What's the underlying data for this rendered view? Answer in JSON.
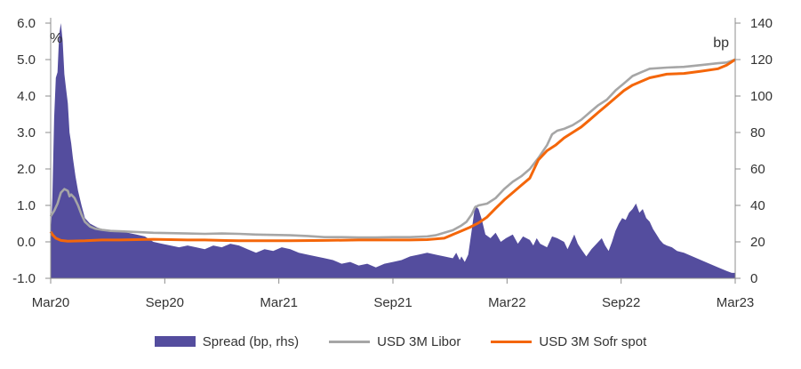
{
  "chart_data": {
    "type": "area+line",
    "title": "",
    "units": {
      "left": "%",
      "right": "bp"
    },
    "x_ticks": [
      "Mar20",
      "Sep20",
      "Mar21",
      "Sep21",
      "Mar22",
      "Sep22",
      "Mar23"
    ],
    "left_axis": {
      "ticks": [
        "6.0",
        "5.0",
        "4.0",
        "3.0",
        "2.0",
        "1.0",
        "0.0",
        "-1.0"
      ],
      "ylim": [
        -1.0,
        6.0
      ]
    },
    "right_axis": {
      "ticks": [
        "140",
        "120",
        "100",
        "80",
        "60",
        "40",
        "20",
        "0"
      ],
      "ylim": [
        0,
        140
      ]
    },
    "grid": false,
    "legend_placement": "bottom",
    "x_unit": "months since Mar20",
    "series": [
      {
        "name": "Spread (bp, rhs)",
        "kind": "area",
        "axis": "right",
        "color": "#544d9e",
        "points": [
          [
            0,
            24
          ],
          [
            0.1,
            44
          ],
          [
            0.2,
            88
          ],
          [
            0.3,
            110
          ],
          [
            0.4,
            113
          ],
          [
            0.5,
            134
          ],
          [
            0.6,
            140
          ],
          [
            0.7,
            130
          ],
          [
            0.8,
            112
          ],
          [
            0.9,
            104
          ],
          [
            1.0,
            96
          ],
          [
            1.1,
            80
          ],
          [
            1.2,
            74
          ],
          [
            1.3,
            66
          ],
          [
            1.45,
            56
          ],
          [
            1.6,
            48
          ],
          [
            1.8,
            40
          ],
          [
            2.0,
            33
          ],
          [
            2.3,
            30
          ],
          [
            2.7,
            28
          ],
          [
            3,
            27
          ],
          [
            3.5,
            26
          ],
          [
            4,
            26
          ],
          [
            4.5,
            25
          ],
          [
            5,
            24
          ],
          [
            5.5,
            23
          ],
          [
            6,
            20
          ],
          [
            6.5,
            19
          ],
          [
            7,
            18
          ],
          [
            7.5,
            17
          ],
          [
            8,
            18
          ],
          [
            8.5,
            17
          ],
          [
            9,
            16
          ],
          [
            9.5,
            18
          ],
          [
            10,
            17
          ],
          [
            10.5,
            19
          ],
          [
            11,
            18
          ],
          [
            11.5,
            16
          ],
          [
            12,
            14
          ],
          [
            12.5,
            16
          ],
          [
            13,
            15
          ],
          [
            13.5,
            17
          ],
          [
            14,
            16
          ],
          [
            14.5,
            14
          ],
          [
            15,
            13
          ],
          [
            15.5,
            12
          ],
          [
            16,
            11
          ],
          [
            16.5,
            10
          ],
          [
            17,
            8
          ],
          [
            17.5,
            9
          ],
          [
            18,
            7
          ],
          [
            18.5,
            8
          ],
          [
            19,
            6
          ],
          [
            19.5,
            8
          ],
          [
            20,
            9
          ],
          [
            20.5,
            10
          ],
          [
            21,
            12
          ],
          [
            21.5,
            13
          ],
          [
            22,
            14
          ],
          [
            22.5,
            13
          ],
          [
            23,
            12
          ],
          [
            23.5,
            11
          ],
          [
            23.7,
            14
          ],
          [
            23.9,
            10
          ],
          [
            24,
            12
          ],
          [
            24.2,
            9
          ],
          [
            24.4,
            13
          ],
          [
            24.6,
            26
          ],
          [
            24.8,
            40
          ],
          [
            25,
            38
          ],
          [
            25.2,
            32
          ],
          [
            25.4,
            24
          ],
          [
            25.7,
            22
          ],
          [
            26,
            25
          ],
          [
            26.3,
            20
          ],
          [
            26.6,
            22
          ],
          [
            27,
            24
          ],
          [
            27.3,
            19
          ],
          [
            27.6,
            23
          ],
          [
            28,
            21
          ],
          [
            28.2,
            18
          ],
          [
            28.4,
            22
          ],
          [
            28.6,
            19
          ],
          [
            29,
            17
          ],
          [
            29.3,
            23
          ],
          [
            29.6,
            22
          ],
          [
            30,
            20
          ],
          [
            30.2,
            16
          ],
          [
            30.4,
            20
          ],
          [
            30.6,
            24
          ],
          [
            30.8,
            19
          ],
          [
            31,
            16
          ],
          [
            31.3,
            12
          ],
          [
            31.6,
            16
          ],
          [
            32,
            20
          ],
          [
            32.2,
            22
          ],
          [
            32.4,
            18
          ],
          [
            32.6,
            15
          ],
          [
            32.8,
            20
          ],
          [
            33,
            26
          ],
          [
            33.2,
            30
          ],
          [
            33.4,
            33
          ],
          [
            33.6,
            32
          ],
          [
            33.8,
            36
          ],
          [
            34,
            38
          ],
          [
            34.2,
            41
          ],
          [
            34.4,
            36
          ],
          [
            34.6,
            38
          ],
          [
            34.8,
            33
          ],
          [
            35,
            31
          ],
          [
            35.2,
            27
          ],
          [
            35.4,
            24
          ],
          [
            35.6,
            21
          ],
          [
            35.8,
            19
          ],
          [
            36,
            18
          ],
          [
            36.3,
            17
          ],
          [
            36.6,
            15
          ],
          [
            37,
            14
          ],
          [
            37.5,
            12
          ],
          [
            38,
            10
          ],
          [
            38.5,
            8
          ],
          [
            39,
            6
          ],
          [
            39.5,
            4
          ],
          [
            39.8,
            3
          ],
          [
            40,
            3
          ]
        ]
      },
      {
        "name": "USD 3M Libor",
        "kind": "line",
        "axis": "left",
        "color": "#a6a6a6",
        "points": [
          [
            0,
            0.7
          ],
          [
            0.2,
            0.85
          ],
          [
            0.4,
            1.05
          ],
          [
            0.6,
            1.35
          ],
          [
            0.8,
            1.45
          ],
          [
            1.0,
            1.4
          ],
          [
            1.1,
            1.25
          ],
          [
            1.2,
            1.3
          ],
          [
            1.4,
            1.2
          ],
          [
            1.6,
            1.0
          ],
          [
            1.8,
            0.75
          ],
          [
            2.0,
            0.55
          ],
          [
            2.3,
            0.42
          ],
          [
            2.6,
            0.36
          ],
          [
            3,
            0.33
          ],
          [
            3.5,
            0.3
          ],
          [
            4,
            0.29
          ],
          [
            5,
            0.27
          ],
          [
            6,
            0.25
          ],
          [
            7,
            0.24
          ],
          [
            8,
            0.23
          ],
          [
            9,
            0.22
          ],
          [
            10,
            0.23
          ],
          [
            11,
            0.22
          ],
          [
            12,
            0.2
          ],
          [
            13,
            0.19
          ],
          [
            14,
            0.18
          ],
          [
            15,
            0.16
          ],
          [
            16,
            0.13
          ],
          [
            17,
            0.13
          ],
          [
            18,
            0.12
          ],
          [
            19,
            0.12
          ],
          [
            20,
            0.13
          ],
          [
            21,
            0.13
          ],
          [
            22,
            0.15
          ],
          [
            22.5,
            0.18
          ],
          [
            23,
            0.25
          ],
          [
            23.5,
            0.32
          ],
          [
            24,
            0.45
          ],
          [
            24.3,
            0.55
          ],
          [
            24.6,
            0.75
          ],
          [
            24.8,
            0.95
          ],
          [
            25,
            1.0
          ],
          [
            25.5,
            1.05
          ],
          [
            26,
            1.2
          ],
          [
            26.5,
            1.45
          ],
          [
            27,
            1.65
          ],
          [
            27.5,
            1.8
          ],
          [
            28,
            2.0
          ],
          [
            28.5,
            2.3
          ],
          [
            29,
            2.65
          ],
          [
            29.3,
            2.95
          ],
          [
            29.6,
            3.05
          ],
          [
            30,
            3.1
          ],
          [
            30.5,
            3.2
          ],
          [
            31,
            3.35
          ],
          [
            31.5,
            3.55
          ],
          [
            32,
            3.75
          ],
          [
            32.5,
            3.9
          ],
          [
            33,
            4.15
          ],
          [
            33.5,
            4.35
          ],
          [
            34,
            4.55
          ],
          [
            34.5,
            4.65
          ],
          [
            35,
            4.75
          ],
          [
            36,
            4.78
          ],
          [
            37,
            4.8
          ],
          [
            38,
            4.85
          ],
          [
            39,
            4.9
          ],
          [
            39.5,
            4.92
          ],
          [
            40,
            5.0
          ]
        ]
      },
      {
        "name": "USD 3M Sofr spot",
        "kind": "line",
        "axis": "left",
        "color": "#f4660a",
        "points": [
          [
            0,
            0.28
          ],
          [
            0.1,
            0.2
          ],
          [
            0.3,
            0.1
          ],
          [
            0.6,
            0.04
          ],
          [
            1,
            0.02
          ],
          [
            2,
            0.03
          ],
          [
            3,
            0.05
          ],
          [
            4,
            0.05
          ],
          [
            5,
            0.06
          ],
          [
            6,
            0.07
          ],
          [
            7,
            0.06
          ],
          [
            8,
            0.05
          ],
          [
            9,
            0.05
          ],
          [
            10,
            0.04
          ],
          [
            11,
            0.03
          ],
          [
            12,
            0.03
          ],
          [
            14,
            0.03
          ],
          [
            16,
            0.04
          ],
          [
            18,
            0.05
          ],
          [
            20,
            0.05
          ],
          [
            21,
            0.05
          ],
          [
            22,
            0.06
          ],
          [
            23,
            0.1
          ],
          [
            23.5,
            0.2
          ],
          [
            24,
            0.3
          ],
          [
            24.5,
            0.4
          ],
          [
            25,
            0.52
          ],
          [
            25.5,
            0.68
          ],
          [
            26,
            0.92
          ],
          [
            26.5,
            1.15
          ],
          [
            27,
            1.35
          ],
          [
            27.5,
            1.55
          ],
          [
            28,
            1.75
          ],
          [
            28.5,
            2.25
          ],
          [
            29,
            2.5
          ],
          [
            29.5,
            2.65
          ],
          [
            30,
            2.85
          ],
          [
            30.5,
            3.0
          ],
          [
            31,
            3.15
          ],
          [
            31.5,
            3.35
          ],
          [
            32,
            3.55
          ],
          [
            32.5,
            3.75
          ],
          [
            33,
            3.95
          ],
          [
            33.5,
            4.15
          ],
          [
            34,
            4.3
          ],
          [
            34.5,
            4.4
          ],
          [
            35,
            4.5
          ],
          [
            35.5,
            4.55
          ],
          [
            36,
            4.6
          ],
          [
            37,
            4.62
          ],
          [
            38,
            4.68
          ],
          [
            39,
            4.75
          ],
          [
            39.5,
            4.85
          ],
          [
            40,
            5.0
          ]
        ]
      }
    ]
  }
}
